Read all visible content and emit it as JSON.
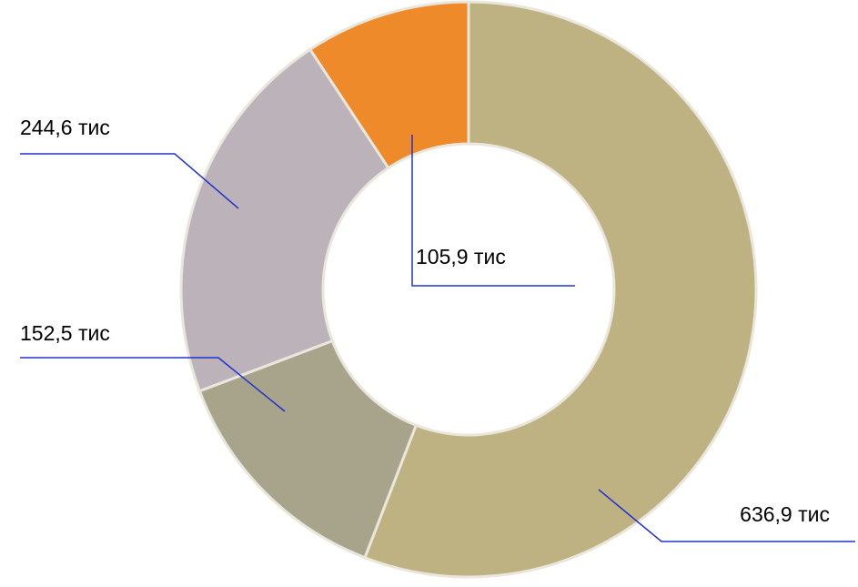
{
  "chart_data": {
    "type": "pie",
    "variant": "donut",
    "legend": "none",
    "slices": [
      {
        "label": "636,9 тис",
        "value": 636.9,
        "color": "#bfb282"
      },
      {
        "label": "152,5 тис",
        "value": 152.5,
        "color": "#a8a48c"
      },
      {
        "label": "244,6 тис",
        "value": 244.6,
        "color": "#bbb2ba"
      },
      {
        "label": "105,9 тис",
        "value": 105.9,
        "color": "#ef8a2b"
      }
    ],
    "leader_line_color": "#2233cc",
    "slice_border_color": "#e9e6dc"
  }
}
